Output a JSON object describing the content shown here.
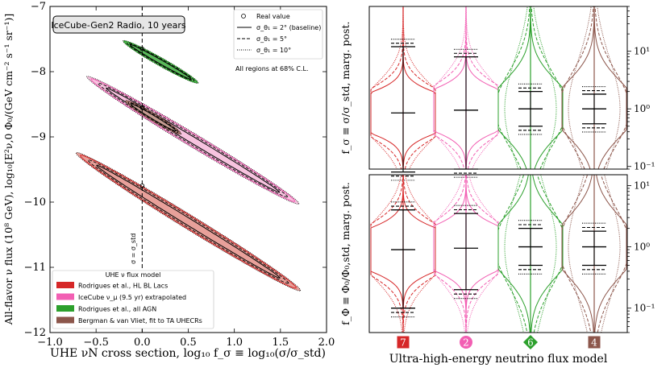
{
  "chart_data": [
    {
      "type": "scatter",
      "subtype": "confidence-ellipses",
      "title": "IceCube-Gen2 Radio, 10 years",
      "xlabel": "UHE νN cross section, log₁₀ f_σ ≡ log₁₀(σ/σ_std)",
      "ylabel": "All-flavor ν flux (10⁸ GeV), log₁₀[E²ν,0 Φ₀/(GeV cm⁻² s⁻¹ sr⁻¹)]",
      "xlim": [
        -1.0,
        2.0
      ],
      "ylim": [
        -12,
        -7
      ],
      "xticks": [
        -1.0,
        -0.5,
        0.0,
        0.5,
        1.0,
        1.5,
        2.0
      ],
      "xtick_labels": [
        "−1.0",
        "−0.5",
        "0.0",
        "0.5",
        "1.0",
        "1.5",
        "2.0"
      ],
      "yticks": [
        -12,
        -11,
        -10,
        -9,
        -8,
        -7
      ],
      "ytick_labels": [
        "−12",
        "−11",
        "−10",
        "−9",
        "−8",
        "−7"
      ],
      "vline": {
        "x": 0.0,
        "label": "σ = σ_std"
      },
      "note": "All regions at 68% C.L.",
      "style_legend": {
        "real_value": "Real value",
        "solid": "σ_θ₁ = 2° (baseline)",
        "dashed": "σ_θ₁ = 5°",
        "dotted": "σ_θ₁ = 10°"
      },
      "model_legend_title": "UHE ν flux model",
      "series": [
        {
          "name": "Rodrigues et al., HL BL Lacs",
          "color": "#d62728",
          "fill": "#e8a09a",
          "real": [
            0.0,
            -9.75
          ],
          "center": [
            0.5,
            -10.3
          ],
          "semi_major": 1.55,
          "semi_minor": 0.085,
          "angle_slope": -0.87
        },
        {
          "name": "IceCube ν_μ (9.5 yr) extrapolated",
          "color": "#f25fb3",
          "fill": "#f7c3df",
          "real": [
            0.0,
            -8.55
          ],
          "center": [
            0.55,
            -9.05
          ],
          "semi_major": 1.45,
          "semi_minor": 0.08,
          "angle_slope": -0.85
        },
        {
          "name": "Rodrigues et al., all AGN",
          "color": "#2ca02c",
          "fill": "#5ab95a",
          "real": [
            0.0,
            -7.65
          ],
          "center": [
            0.2,
            -7.85
          ],
          "semi_major": 0.5,
          "semi_minor": 0.05,
          "angle_slope": -0.8
        },
        {
          "name": "Bergman & van Vliet, fit to TA UHECRs",
          "color": "#8c564b",
          "fill": "#c69c92",
          "real": [
            0.0,
            -8.55
          ],
          "center": [
            0.12,
            -8.7
          ],
          "semi_major": 0.38,
          "semi_minor": 0.045,
          "angle_slope": -0.85
        }
      ]
    },
    {
      "type": "violin",
      "ylabel": "f_σ ≡ σ/σ_std, marg. post.",
      "yscale": "log",
      "ylim": [
        0.09,
        60
      ],
      "yticks": [
        0.1,
        1,
        10
      ],
      "ytick_labels": [
        "10⁻¹",
        "10⁰",
        "10¹"
      ],
      "categories": [
        "7",
        "2",
        "6",
        "4"
      ],
      "markers": [
        "square",
        "circle",
        "diamond",
        "square"
      ],
      "series": [
        {
          "name": "Rodrigues et al., HL BL Lacs",
          "color": "#d62728",
          "median": 0.85,
          "low": 0.08,
          "high": 12,
          "peak_width": 0.17
        },
        {
          "name": "IceCube ν_μ (9.5 yr) extrapolated",
          "color": "#f25fb3",
          "median": 0.95,
          "low": 0.09,
          "high": 8,
          "peak_width": 0.18
        },
        {
          "name": "Rodrigues et al., all AGN",
          "color": "#2ca02c",
          "median": 1.0,
          "low": 0.5,
          "high": 2.0,
          "peak_width": 0.3
        },
        {
          "name": "Bergman & van Vliet, fit to TA UHECRs",
          "color": "#8c564b",
          "median": 1.0,
          "low": 0.55,
          "high": 1.8,
          "peak_width": 0.3
        }
      ]
    },
    {
      "type": "violin",
      "ylabel": "f_Φ ≡ Φ₀/Φ₀,std, marg. post.",
      "xlabel": "Ultra-high-energy neutrino flux model",
      "yscale": "log",
      "ylim": [
        0.04,
        15
      ],
      "yticks": [
        0.1,
        1,
        10
      ],
      "ytick_labels": [
        "10⁻¹",
        "10⁰",
        "10¹"
      ],
      "categories": [
        "7",
        "2",
        "6",
        "4"
      ],
      "markers": [
        "square",
        "circle",
        "diamond",
        "square"
      ],
      "series": [
        {
          "name": "Rodrigues et al., HL BL Lacs",
          "color": "#d62728",
          "median": 0.9,
          "low": 0.1,
          "high": 4,
          "peak_width": 0.17
        },
        {
          "name": "IceCube ν_μ (9.5 yr) extrapolated",
          "color": "#f25fb3",
          "median": 0.95,
          "low": 0.2,
          "high": 3.5,
          "peak_width": 0.18
        },
        {
          "name": "Rodrigues et al., all AGN",
          "color": "#2ca02c",
          "median": 1.0,
          "low": 0.5,
          "high": 2.0,
          "peak_width": 0.3
        },
        {
          "name": "Bergman & van Vliet, fit to TA UHECRs",
          "color": "#8c564b",
          "median": 1.0,
          "low": 0.5,
          "high": 1.8,
          "peak_width": 0.3
        }
      ]
    }
  ]
}
